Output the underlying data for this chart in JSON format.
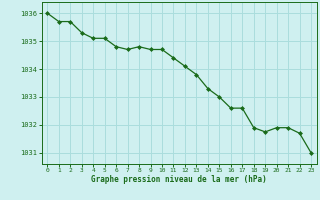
{
  "x": [
    0,
    1,
    2,
    3,
    4,
    5,
    6,
    7,
    8,
    9,
    10,
    11,
    12,
    13,
    14,
    15,
    16,
    17,
    18,
    19,
    20,
    21,
    22,
    23
  ],
  "y": [
    1036.0,
    1035.7,
    1035.7,
    1035.3,
    1035.1,
    1035.1,
    1034.8,
    1034.7,
    1034.8,
    1034.7,
    1034.7,
    1034.4,
    1034.1,
    1033.8,
    1033.3,
    1033.0,
    1032.6,
    1032.6,
    1031.9,
    1031.75,
    1031.9,
    1031.9,
    1031.7,
    1031.0
  ],
  "line_color": "#1a6b1a",
  "marker_color": "#1a6b1a",
  "bg_color": "#cff0f0",
  "grid_color": "#aadddd",
  "xlabel": "Graphe pression niveau de la mer (hPa)",
  "xlabel_color": "#1a6b1a",
  "tick_color": "#1a6b1a",
  "ylabel_ticks": [
    1031,
    1032,
    1033,
    1034,
    1035,
    1036
  ],
  "xlim": [
    -0.5,
    23.5
  ],
  "ylim": [
    1030.6,
    1036.4
  ]
}
